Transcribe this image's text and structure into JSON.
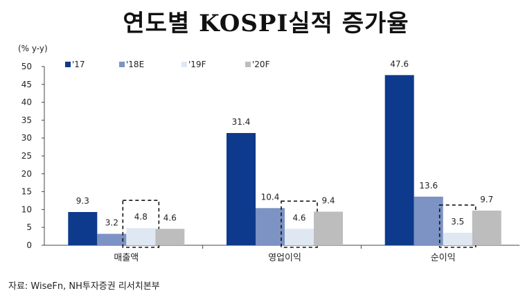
{
  "title": "연도별 KOSPI실적 증가율",
  "source": "자료: WiseFn, NH투자증권 리서치본부",
  "chart_data": {
    "type": "bar",
    "unit_label": "(% y-y)",
    "categories": [
      "매출액",
      "영업이익",
      "순이익"
    ],
    "series": [
      {
        "name": "'17",
        "values": [
          9.3,
          31.4,
          47.6
        ],
        "color": "#0d3a8c"
      },
      {
        "name": "'18E",
        "values": [
          3.2,
          10.4,
          13.6
        ],
        "color": "#7c93c4"
      },
      {
        "name": "'19F",
        "values": [
          4.8,
          4.6,
          3.5
        ],
        "color": "#dfe8f2"
      },
      {
        "name": "'20F",
        "values": [
          4.6,
          9.4,
          9.7
        ],
        "color": "#bdbdbd"
      }
    ],
    "ylim": [
      0,
      50
    ],
    "yticks": [
      0,
      5,
      10,
      15,
      20,
      25,
      30,
      35,
      40,
      45,
      50
    ],
    "legend_position": "top-left",
    "grid": false,
    "highlighted_series": "'19F"
  }
}
